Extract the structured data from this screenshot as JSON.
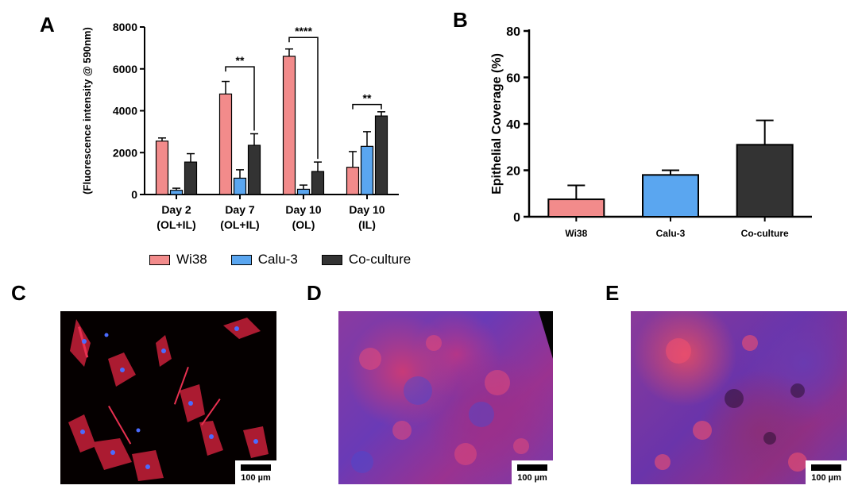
{
  "panels": {
    "a": "A",
    "b": "B",
    "c": "C",
    "d": "D",
    "e": "E"
  },
  "legend": [
    {
      "name": "Wi38",
      "color": "#f28b8b"
    },
    {
      "name": "Calu-3",
      "color": "#5aa6f0"
    },
    {
      "name": "Co-culture",
      "color": "#333333"
    }
  ],
  "scale_label": "100 µm",
  "chart_data": [
    {
      "type": "bar",
      "panel": "A",
      "ylabel": "(Fluorescence intensity @ 590nm)",
      "ylim": [
        0,
        8000
      ],
      "yticks": [
        "0",
        "2000",
        "4000",
        "6000",
        "8000"
      ],
      "categories": [
        [
          "Day 2",
          "(OL+IL)"
        ],
        [
          "Day 7",
          "(OL+IL)"
        ],
        [
          "Day 10",
          "(OL)"
        ],
        [
          "Day 10",
          "(IL)"
        ]
      ],
      "series": [
        {
          "name": "Wi38",
          "color": "#f28b8b",
          "values": [
            2550,
            4800,
            6600,
            1300
          ],
          "errors": [
            150,
            600,
            350,
            750
          ]
        },
        {
          "name": "Calu-3",
          "color": "#5aa6f0",
          "values": [
            200,
            780,
            250,
            2300
          ],
          "errors": [
            100,
            400,
            200,
            700
          ]
        },
        {
          "name": "Co-culture",
          "color": "#333333",
          "values": [
            1550,
            2350,
            1100,
            3750
          ],
          "errors": [
            400,
            550,
            450,
            200
          ]
        }
      ],
      "annotations": [
        {
          "label": "**",
          "from": [
            1,
            0
          ],
          "to": [
            1,
            2
          ],
          "y": 6100
        },
        {
          "label": "****",
          "from": [
            2,
            0
          ],
          "to": [
            2,
            2
          ],
          "y": 7500
        },
        {
          "label": "**",
          "from": [
            3,
            0
          ],
          "to": [
            3,
            2
          ],
          "y": 4300
        }
      ]
    },
    {
      "type": "bar",
      "panel": "B",
      "ylabel": "Epithelial Coverage (%)",
      "ylim": [
        0,
        80
      ],
      "yticks": [
        "0",
        "20",
        "40",
        "60",
        "80"
      ],
      "categories": [
        "Wi38",
        "Calu-3",
        "Co-culture"
      ],
      "colors": [
        "#f28b8b",
        "#5aa6f0",
        "#333333"
      ],
      "values": [
        7.5,
        18,
        31
      ],
      "errors": [
        6,
        2,
        10.5
      ]
    }
  ]
}
